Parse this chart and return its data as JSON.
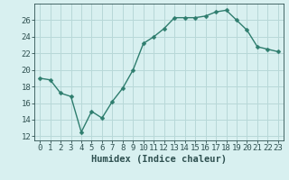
{
  "x": [
    0,
    1,
    2,
    3,
    4,
    5,
    6,
    7,
    8,
    9,
    10,
    11,
    12,
    13,
    14,
    15,
    16,
    17,
    18,
    19,
    20,
    21,
    22,
    23
  ],
  "y": [
    19.0,
    18.8,
    17.2,
    16.8,
    12.5,
    15.0,
    14.2,
    16.2,
    17.8,
    20.0,
    23.2,
    24.0,
    25.0,
    26.3,
    26.3,
    26.3,
    26.5,
    27.0,
    27.2,
    26.0,
    24.8,
    22.8,
    22.5,
    22.2
  ],
  "line_color": "#2e7d6e",
  "marker": "D",
  "marker_size": 2.5,
  "bg_color": "#d8f0f0",
  "grid_color": "#b8d8d8",
  "xlabel": "Humidex (Indice chaleur)",
  "tick_color": "#2e5050",
  "ylim": [
    11.5,
    28
  ],
  "yticks": [
    12,
    14,
    16,
    18,
    20,
    22,
    24,
    26
  ],
  "xticks": [
    0,
    1,
    2,
    3,
    4,
    5,
    6,
    7,
    8,
    9,
    10,
    11,
    12,
    13,
    14,
    15,
    16,
    17,
    18,
    19,
    20,
    21,
    22,
    23
  ],
  "tick_fontsize": 6.5,
  "xlabel_fontsize": 7.5,
  "line_width": 1.0
}
